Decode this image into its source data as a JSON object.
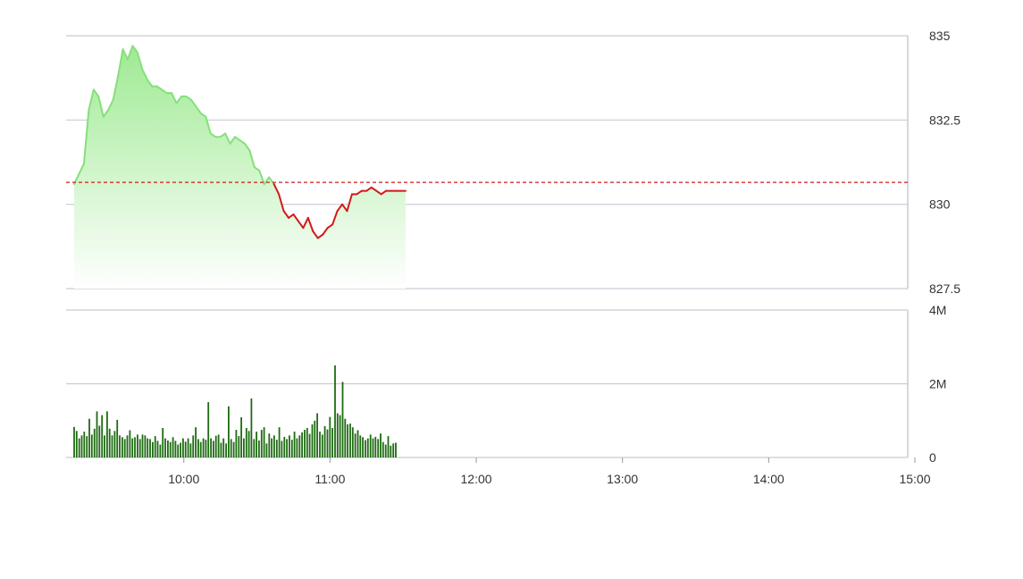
{
  "chart_data": [
    {
      "type": "area",
      "ylim": [
        827.5,
        835
      ],
      "y_ticks": [
        "835",
        "832.5",
        "830",
        "827.5"
      ],
      "reference_value": 830.65,
      "colors": {
        "above_reference": "#86e07a",
        "below_reference": "#d11a1a",
        "fill_top": "#9eea92",
        "fill_bottom": "#ffffff",
        "reference_line": "#d11a1a",
        "grid": "#c8ccd4"
      },
      "series": [
        {
          "x": [
            "09:15",
            "09:17",
            "09:19",
            "09:21",
            "09:23",
            "09:25",
            "09:27",
            "09:29",
            "09:31",
            "09:33",
            "09:35",
            "09:37",
            "09:39",
            "09:41",
            "09:43",
            "09:45",
            "09:47",
            "09:49",
            "09:51",
            "09:53",
            "09:55",
            "09:57",
            "09:59",
            "10:01",
            "10:03",
            "10:05",
            "10:07",
            "10:09",
            "10:11",
            "10:13",
            "10:15",
            "10:17",
            "10:19",
            "10:21",
            "10:23",
            "10:25",
            "10:27",
            "10:29",
            "10:31",
            "10:33",
            "10:35",
            "10:37",
            "10:39",
            "10:41",
            "10:43",
            "10:45",
            "10:47",
            "10:49",
            "10:51",
            "10:53",
            "10:55",
            "10:57",
            "10:59",
            "11:01",
            "11:03",
            "11:05",
            "11:07",
            "11:09",
            "11:11",
            "11:13",
            "11:15",
            "11:17",
            "11:19",
            "11:21",
            "11:23",
            "11:25",
            "11:27",
            "11:29",
            "11:31"
          ],
          "y": [
            830.6,
            830.9,
            831.2,
            832.8,
            833.4,
            833.2,
            832.6,
            832.8,
            833.1,
            833.8,
            834.6,
            834.3,
            834.7,
            834.5,
            834.0,
            833.7,
            833.5,
            833.5,
            833.4,
            833.3,
            833.3,
            833.0,
            833.2,
            833.2,
            833.1,
            832.9,
            832.7,
            832.6,
            832.1,
            832.0,
            832.0,
            832.1,
            831.8,
            832.0,
            831.9,
            831.8,
            831.6,
            831.1,
            831.0,
            830.6,
            830.8,
            830.6,
            830.3,
            829.8,
            829.6,
            829.7,
            829.5,
            829.3,
            829.6,
            829.2,
            829.0,
            829.1,
            829.3,
            829.4,
            829.8,
            830.0,
            829.8,
            830.3,
            830.3,
            830.4,
            830.4,
            830.5,
            830.4,
            830.3,
            830.4,
            830.4,
            830.4,
            830.4,
            830.4
          ]
        }
      ]
    },
    {
      "type": "bar",
      "ylim": [
        0,
        4000000
      ],
      "y_ticks": [
        "4M",
        "2M",
        "0"
      ],
      "x_ticks": [
        "10:00",
        "11:00",
        "12:00",
        "13:00",
        "14:00",
        "15:00"
      ],
      "colors": {
        "bar": "#1e6b12",
        "grid": "#c8ccd4"
      },
      "series": [
        {
          "values": [
            830000,
            720000,
            520000,
            600000,
            700000,
            580000,
            1050000,
            620000,
            780000,
            1250000,
            860000,
            1150000,
            600000,
            1250000,
            780000,
            600000,
            720000,
            1020000,
            600000,
            550000,
            500000,
            600000,
            740000,
            520000,
            550000,
            620000,
            500000,
            620000,
            600000,
            520000,
            500000,
            420000,
            580000,
            450000,
            350000,
            800000,
            520000,
            460000,
            420000,
            550000,
            450000,
            350000,
            400000,
            520000,
            430000,
            520000,
            380000,
            600000,
            820000,
            500000,
            420000,
            520000,
            480000,
            1500000,
            520000,
            450000,
            590000,
            620000,
            400000,
            520000,
            380000,
            1390000,
            500000,
            420000,
            750000,
            580000,
            1090000,
            520000,
            800000,
            720000,
            1600000,
            500000,
            700000,
            460000,
            750000,
            820000,
            380000,
            650000,
            520000,
            600000,
            480000,
            820000,
            450000,
            560000,
            500000,
            600000,
            480000,
            700000,
            520000,
            600000,
            680000,
            750000,
            800000,
            640000,
            900000,
            1000000,
            1200000,
            700000,
            620000,
            850000,
            760000,
            1100000,
            800000,
            2500000,
            1200000,
            1150000,
            2050000,
            1050000,
            900000,
            920000,
            820000,
            650000,
            740000,
            600000,
            550000,
            470000,
            520000,
            620000,
            520000,
            560000,
            500000,
            650000,
            420000,
            350000,
            580000,
            320000,
            380000,
            400000
          ]
        }
      ]
    }
  ]
}
